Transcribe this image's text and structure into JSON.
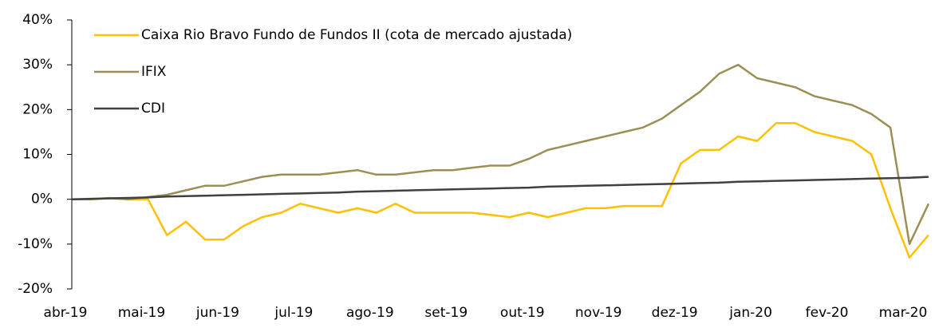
{
  "chart_data": {
    "type": "line",
    "categories": [
      "abr-19",
      null,
      null,
      null,
      "mai-19",
      null,
      null,
      null,
      "jun-19",
      null,
      null,
      null,
      "jul-19",
      null,
      null,
      null,
      "ago-19",
      null,
      null,
      null,
      "set-19",
      null,
      null,
      null,
      "out-19",
      null,
      null,
      null,
      "nov-19",
      null,
      null,
      null,
      "dez-19",
      null,
      null,
      null,
      "jan-20",
      null,
      null,
      null,
      "fev-20",
      null,
      null,
      null,
      "mar-20",
      null
    ],
    "series": [
      {
        "name": "Caixa Rio Bravo Fundo de Fundos II (cota de mercado ajustada)",
        "color": "#ffc000",
        "values": [
          0,
          0,
          0.3,
          0,
          0,
          -8,
          -5,
          -9,
          -9,
          -6,
          -4,
          -3,
          -1,
          -2,
          -3,
          -2,
          -3,
          -1,
          -3,
          -3,
          -3,
          -3,
          -3.5,
          -4,
          -3,
          -4,
          -3,
          -2,
          -2,
          -1.5,
          -1.5,
          -1.5,
          8,
          11,
          11,
          14,
          13,
          17,
          17,
          15,
          14,
          13,
          10,
          -2,
          -13,
          -8
        ]
      },
      {
        "name": "IFIX",
        "color": "#9c8f55",
        "values": [
          0,
          0,
          0.2,
          0,
          0.5,
          1,
          2,
          3,
          3,
          4,
          5,
          5.5,
          5.5,
          5.5,
          6,
          6.5,
          5.5,
          5.5,
          6,
          6.5,
          6.5,
          7,
          7.5,
          7.5,
          9,
          11,
          12,
          13,
          14,
          15,
          16,
          18,
          21,
          24,
          28,
          30,
          27,
          26,
          25,
          23,
          22,
          21,
          19,
          16,
          -10,
          -1
        ]
      },
      {
        "name": "CDI",
        "color": "#404040",
        "values": [
          0,
          0.1,
          0.2,
          0.3,
          0.4,
          0.6,
          0.7,
          0.8,
          0.9,
          1.0,
          1.1,
          1.2,
          1.3,
          1.4,
          1.5,
          1.7,
          1.8,
          1.9,
          2.0,
          2.1,
          2.2,
          2.3,
          2.4,
          2.5,
          2.6,
          2.8,
          2.9,
          3.0,
          3.1,
          3.2,
          3.3,
          3.4,
          3.5,
          3.6,
          3.7,
          3.9,
          4.0,
          4.1,
          4.2,
          4.3,
          4.4,
          4.5,
          4.6,
          4.7,
          4.8,
          5.0
        ]
      }
    ],
    "ylim": [
      -20,
      40
    ],
    "yticks": [
      {
        "value": -20,
        "label": "-20%"
      },
      {
        "value": -10,
        "label": "-10%"
      },
      {
        "value": 0,
        "label": "0%"
      },
      {
        "value": 10,
        "label": "10%"
      },
      {
        "value": 20,
        "label": "20%"
      },
      {
        "value": 30,
        "label": "30%"
      },
      {
        "value": 40,
        "label": "40%"
      }
    ],
    "legend": "upper left"
  }
}
